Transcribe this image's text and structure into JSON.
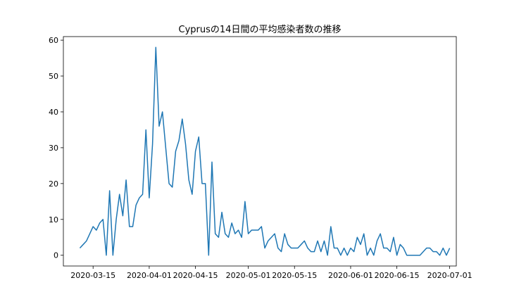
{
  "chart_data": {
    "type": "line",
    "title": "Cyprusの14日間の平均感染者数の推移",
    "xlabel": "",
    "ylabel": "",
    "xlim": [
      "2020-03-06",
      "2020-07-03"
    ],
    "ylim": [
      -3,
      61
    ],
    "x_ticks": [
      "2020-03-15",
      "2020-04-01",
      "2020-04-15",
      "2020-05-01",
      "2020-05-15",
      "2020-06-01",
      "2020-06-15",
      "2020-07-01"
    ],
    "y_ticks": [
      0,
      10,
      20,
      30,
      40,
      50,
      60
    ],
    "grid": false,
    "legend": "none",
    "series": [
      {
        "color": "#1f77b4",
        "x": [
          "2020-03-11",
          "2020-03-12",
          "2020-03-13",
          "2020-03-14",
          "2020-03-15",
          "2020-03-16",
          "2020-03-17",
          "2020-03-18",
          "2020-03-19",
          "2020-03-20",
          "2020-03-21",
          "2020-03-22",
          "2020-03-23",
          "2020-03-24",
          "2020-03-25",
          "2020-03-26",
          "2020-03-27",
          "2020-03-28",
          "2020-03-29",
          "2020-03-30",
          "2020-03-31",
          "2020-04-01",
          "2020-04-02",
          "2020-04-03",
          "2020-04-04",
          "2020-04-05",
          "2020-04-06",
          "2020-04-07",
          "2020-04-08",
          "2020-04-09",
          "2020-04-10",
          "2020-04-11",
          "2020-04-12",
          "2020-04-13",
          "2020-04-14",
          "2020-04-15",
          "2020-04-16",
          "2020-04-17",
          "2020-04-18",
          "2020-04-19",
          "2020-04-20",
          "2020-04-21",
          "2020-04-22",
          "2020-04-23",
          "2020-04-24",
          "2020-04-25",
          "2020-04-26",
          "2020-04-27",
          "2020-04-28",
          "2020-04-29",
          "2020-04-30",
          "2020-05-01",
          "2020-05-02",
          "2020-05-03",
          "2020-05-04",
          "2020-05-05",
          "2020-05-06",
          "2020-05-07",
          "2020-05-08",
          "2020-05-09",
          "2020-05-10",
          "2020-05-11",
          "2020-05-12",
          "2020-05-13",
          "2020-05-14",
          "2020-05-15",
          "2020-05-16",
          "2020-05-17",
          "2020-05-18",
          "2020-05-19",
          "2020-05-20",
          "2020-05-21",
          "2020-05-22",
          "2020-05-23",
          "2020-05-24",
          "2020-05-25",
          "2020-05-26",
          "2020-05-27",
          "2020-05-28",
          "2020-05-29",
          "2020-05-30",
          "2020-05-31",
          "2020-06-01",
          "2020-06-02",
          "2020-06-03",
          "2020-06-04",
          "2020-06-05",
          "2020-06-06",
          "2020-06-07",
          "2020-06-08",
          "2020-06-09",
          "2020-06-10",
          "2020-06-11",
          "2020-06-12",
          "2020-06-13",
          "2020-06-14",
          "2020-06-15",
          "2020-06-16",
          "2020-06-17",
          "2020-06-18",
          "2020-06-19",
          "2020-06-20",
          "2020-06-21",
          "2020-06-22",
          "2020-06-23",
          "2020-06-24",
          "2020-06-25",
          "2020-06-26",
          "2020-06-27",
          "2020-06-28",
          "2020-06-29",
          "2020-06-30",
          "2020-07-01"
        ],
        "values": [
          2,
          3,
          4,
          6,
          8,
          7,
          9,
          10,
          0,
          18,
          0,
          10,
          17,
          11,
          21,
          8,
          8,
          14,
          16,
          17,
          35,
          16,
          31,
          58,
          36,
          40,
          30,
          20,
          19,
          29,
          32,
          38,
          31,
          21,
          17,
          29,
          33,
          20,
          20,
          0,
          26,
          6,
          5,
          12,
          6,
          5,
          9,
          6,
          7,
          5,
          15,
          6,
          7,
          7,
          7,
          8,
          2,
          4,
          5,
          6,
          2,
          1,
          6,
          3,
          2,
          2,
          2,
          3,
          4,
          2,
          1,
          1,
          4,
          1,
          4,
          0,
          8,
          2,
          2,
          0,
          2,
          0,
          2,
          1,
          5,
          3,
          6,
          0,
          2,
          0,
          4,
          6,
          2,
          2,
          1,
          5,
          0,
          3,
          2,
          0,
          0,
          0,
          0,
          0,
          1,
          2,
          2,
          1,
          1,
          0,
          2,
          0,
          2
        ]
      }
    ]
  }
}
